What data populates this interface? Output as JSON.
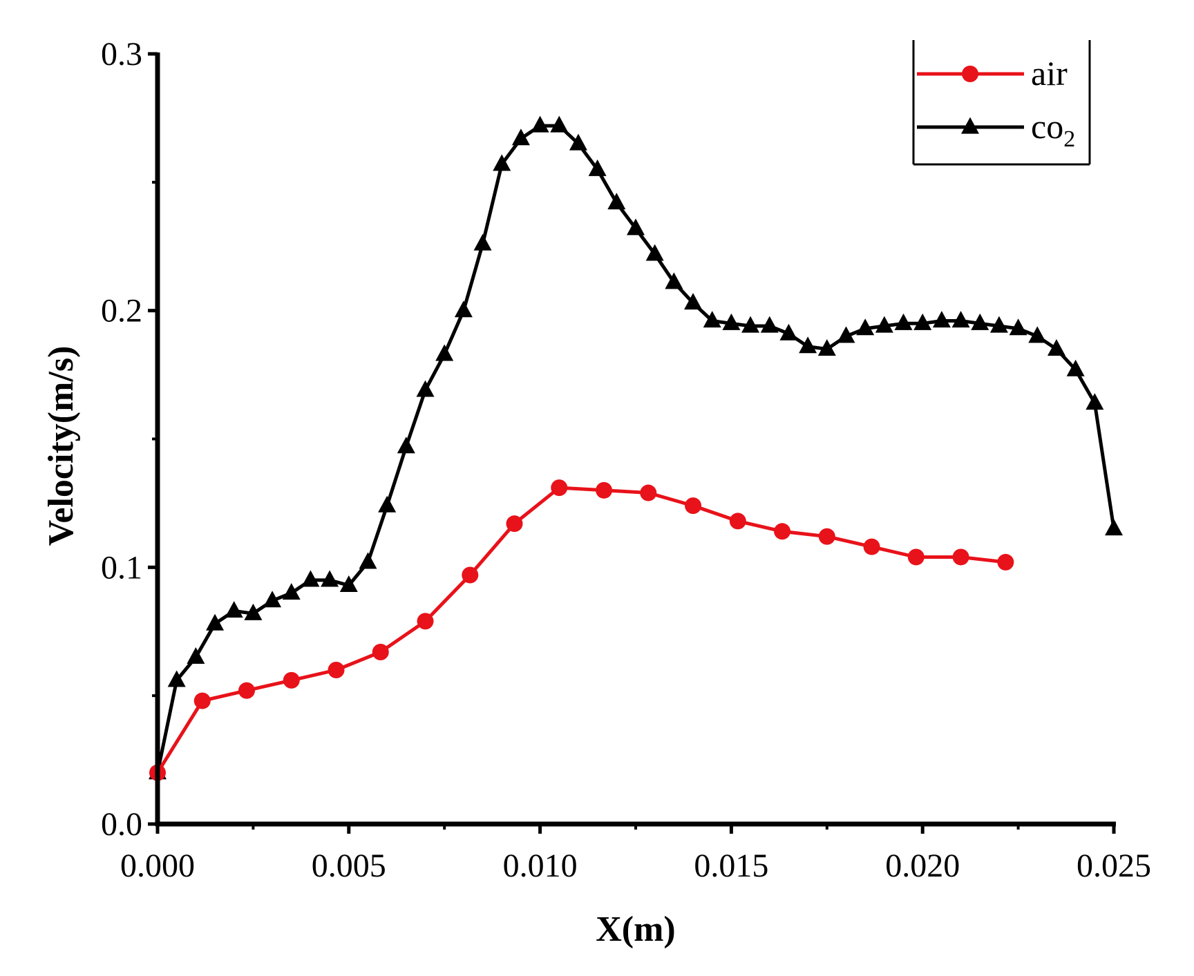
{
  "chart_data": {
    "type": "line",
    "title": "",
    "xlabel": "X(m)",
    "ylabel": "Velocity(m/s)",
    "xlim": [
      0,
      0.025
    ],
    "ylim": [
      0,
      0.3
    ],
    "xticks": [
      0,
      0.005,
      0.01,
      0.015,
      0.02,
      0.025
    ],
    "xtick_labels": [
      "0.000",
      "0.005",
      "0.010",
      "0.015",
      "0.020",
      "0.025"
    ],
    "yticks": [
      0,
      0.1,
      0.2,
      0.3
    ],
    "ytick_labels": [
      "0.0",
      "0.1",
      "0.2",
      "0.3"
    ],
    "legend_position": "top-right",
    "series": [
      {
        "name": "air",
        "color": "#e8121a",
        "marker": "circle",
        "x": [
          0,
          0.00117,
          0.00233,
          0.0035,
          0.00467,
          0.00583,
          0.007,
          0.00817,
          0.00933,
          0.0105,
          0.01167,
          0.01283,
          0.014,
          0.01517,
          0.01633,
          0.0175,
          0.01867,
          0.01983,
          0.021,
          0.02217
        ],
        "values": [
          0.02,
          0.048,
          0.052,
          0.056,
          0.06,
          0.067,
          0.079,
          0.097,
          0.117,
          0.131,
          0.13,
          0.129,
          0.124,
          0.118,
          0.114,
          0.112,
          0.108,
          0.104,
          0.104,
          0.102
        ]
      },
      {
        "name": "co",
        "name_sub": "2",
        "color": "#000000",
        "marker": "triangle",
        "x": [
          0,
          0.0005,
          0.001,
          0.0015,
          0.002,
          0.0025,
          0.003,
          0.0035,
          0.004,
          0.0045,
          0.005,
          0.0055,
          0.006,
          0.0065,
          0.007,
          0.0075,
          0.008,
          0.0085,
          0.009,
          0.0095,
          0.01,
          0.0105,
          0.011,
          0.0115,
          0.012,
          0.0125,
          0.013,
          0.0135,
          0.014,
          0.0145,
          0.015,
          0.0155,
          0.016,
          0.0165,
          0.017,
          0.0175,
          0.018,
          0.0185,
          0.019,
          0.0195,
          0.02,
          0.0205,
          0.021,
          0.0215,
          0.022,
          0.0225,
          0.023,
          0.0235,
          0.024,
          0.0245,
          0.025
        ],
        "values": [
          0.02,
          0.056,
          0.065,
          0.078,
          0.083,
          0.082,
          0.087,
          0.09,
          0.095,
          0.095,
          0.093,
          0.102,
          0.124,
          0.147,
          0.169,
          0.183,
          0.2,
          0.226,
          0.257,
          0.267,
          0.272,
          0.272,
          0.265,
          0.255,
          0.242,
          0.232,
          0.222,
          0.211,
          0.203,
          0.196,
          0.195,
          0.194,
          0.194,
          0.191,
          0.186,
          0.185,
          0.19,
          0.193,
          0.194,
          0.195,
          0.195,
          0.196,
          0.196,
          0.195,
          0.194,
          0.193,
          0.19,
          0.185,
          0.177,
          0.164,
          0.115
        ]
      }
    ]
  }
}
